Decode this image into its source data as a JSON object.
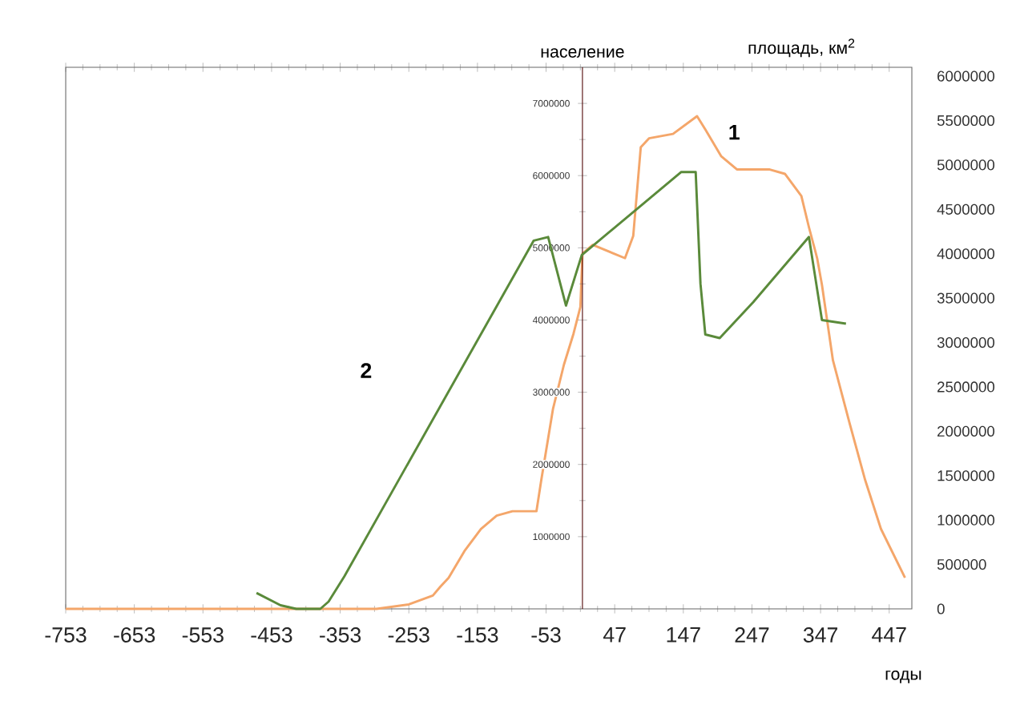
{
  "chart_data": {
    "type": "line",
    "xlabel": "годы",
    "ylabel": "площадь, км$^{2}$",
    "y2label": "население",
    "xlim": [
      -753,
      480
    ],
    "xticks": [
      -753,
      -653,
      -553,
      -453,
      -353,
      -253,
      -153,
      -53,
      47,
      147,
      247,
      347,
      447
    ],
    "ylim": [
      0,
      6100000
    ],
    "yticks": [
      0,
      500000,
      1000000,
      1500000,
      2000000,
      2500000,
      3000000,
      3500000,
      4000000,
      4500000,
      5000000,
      5500000,
      6000000
    ],
    "y2lim": [
      0,
      7500000
    ],
    "y2ticks": [
      1000000,
      2000000,
      3000000,
      4000000,
      5000000,
      6000000,
      7000000
    ],
    "grid": false,
    "marker": "none",
    "line_style": "solid",
    "series": [
      {
        "color": "#f4a66a",
        "x": [
          -753,
          -300,
          -253,
          -218,
          -207,
          -195,
          -172,
          -148,
          -125,
          -102,
          -67,
          -60,
          -43,
          -27,
          -13,
          -3,
          0,
          15,
          62,
          74,
          85,
          97,
          132,
          167,
          179,
          202,
          225,
          272,
          295,
          319,
          330,
          342,
          349,
          365,
          389,
          412,
          435,
          470
        ],
        "values": [
          0,
          0,
          50000,
          150000,
          250000,
          350000,
          650000,
          900000,
          1050000,
          1100000,
          1100000,
          1450000,
          2250000,
          2750000,
          3100000,
          3400000,
          4000000,
          4100000,
          3950000,
          4200000,
          5200000,
          5300000,
          5350000,
          5550000,
          5400000,
          5100000,
          4950000,
          4950000,
          4900000,
          4650000,
          4300000,
          3950000,
          3650000,
          2800000,
          2100000,
          1450000,
          900000,
          350000
        ]
      },
      {
        "color": "#5a8a3a",
        "axis": "y2",
        "x": [
          -475,
          -440,
          -417,
          -382,
          -370,
          -347,
          -71,
          -50,
          -24,
          -1,
          144,
          165,
          172,
          179,
          200,
          249,
          330,
          349,
          384
        ],
        "values": [
          220000,
          50000,
          0,
          0,
          100000,
          450000,
          5100000,
          5150000,
          4200000,
          4900000,
          6050000,
          6050000,
          4500000,
          3800000,
          3750000,
          4250000,
          5150000,
          4000000,
          3950000
        ]
      }
    ],
    "annotations": [
      "1",
      "2"
    ]
  }
}
